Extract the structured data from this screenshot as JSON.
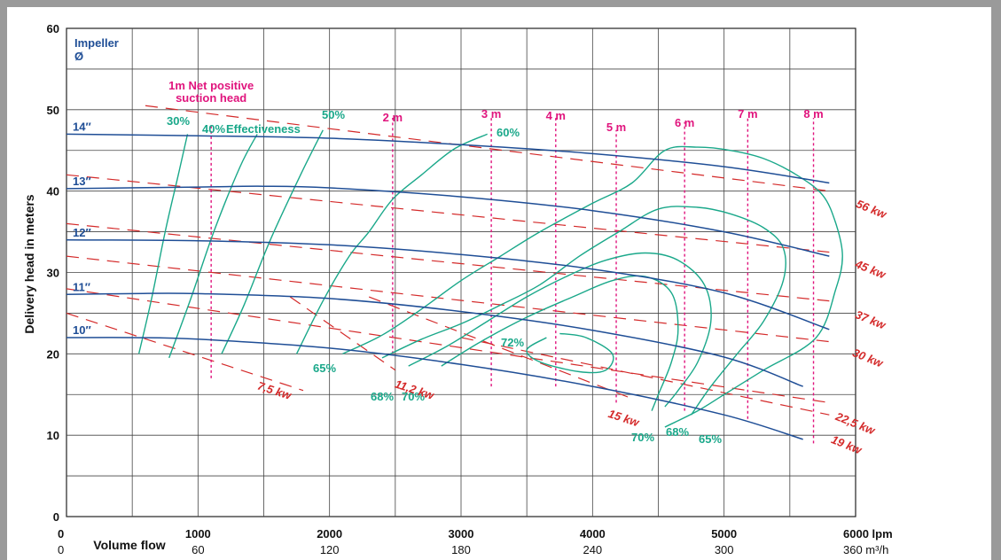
{
  "chart_data": {
    "type": "line",
    "x_unit": "lpm",
    "xlim": [
      0,
      6000
    ],
    "ylim": [
      0,
      60
    ],
    "ylabel": "Delivery head in meters",
    "xlabel": "Volume flow",
    "x_ticks": [
      "0",
      "1000",
      "2000",
      "3000",
      "4000",
      "5000",
      "6000 lpm"
    ],
    "x_ticks_secondary": [
      "0",
      "60",
      "120",
      "180",
      "240",
      "300",
      "360 m³/h"
    ],
    "y_ticks": [
      "0",
      "10",
      "20",
      "30",
      "40",
      "50",
      "60"
    ],
    "grid": true,
    "impeller_header": [
      "Impeller",
      "Ø"
    ],
    "impeller_curves": [
      {
        "name": "14″",
        "points": [
          [
            0,
            47
          ],
          [
            1000,
            46.8
          ],
          [
            2000,
            46.5
          ],
          [
            3000,
            45.7
          ],
          [
            4000,
            44.6
          ],
          [
            5000,
            43
          ],
          [
            5800,
            41
          ]
        ]
      },
      {
        "name": "13″",
        "points": [
          [
            0,
            40.3
          ],
          [
            1000,
            40.5
          ],
          [
            1500,
            40.6
          ],
          [
            2000,
            40.4
          ],
          [
            3000,
            39.3
          ],
          [
            4000,
            37.6
          ],
          [
            5000,
            35
          ],
          [
            5800,
            32
          ]
        ]
      },
      {
        "name": "12″",
        "points": [
          [
            0,
            34
          ],
          [
            1000,
            33.9
          ],
          [
            2000,
            33.4
          ],
          [
            3000,
            32.2
          ],
          [
            4000,
            30.4
          ],
          [
            5000,
            27.5
          ],
          [
            5800,
            23
          ]
        ]
      },
      {
        "name": "11″",
        "points": [
          [
            0,
            27.3
          ],
          [
            500,
            27.4
          ],
          [
            1000,
            27.4
          ],
          [
            2000,
            26.8
          ],
          [
            3000,
            25.2
          ],
          [
            4000,
            22.9
          ],
          [
            5000,
            19.6
          ],
          [
            5600,
            16
          ]
        ]
      },
      {
        "name": "10″",
        "points": [
          [
            0,
            22
          ],
          [
            500,
            22
          ],
          [
            1000,
            21.8
          ],
          [
            2000,
            20.7
          ],
          [
            3000,
            18.7
          ],
          [
            4000,
            16
          ],
          [
            5000,
            12.5
          ],
          [
            5600,
            9.5
          ]
        ]
      }
    ],
    "efficiency_curves": [
      {
        "name": "30%",
        "points": [
          [
            550,
            20
          ],
          [
            650,
            27
          ],
          [
            750,
            35
          ],
          [
            850,
            42
          ],
          [
            920,
            47
          ]
        ]
      },
      {
        "name": "40%",
        "points": [
          [
            780,
            19.5
          ],
          [
            950,
            27
          ],
          [
            1120,
            35
          ],
          [
            1320,
            43
          ],
          [
            1450,
            47
          ]
        ]
      },
      {
        "name": "Effectiveness",
        "points": [
          [
            1180,
            20
          ],
          [
            1350,
            26
          ],
          [
            1550,
            34
          ],
          [
            1780,
            42
          ],
          [
            1950,
            47.5
          ]
        ]
      },
      {
        "name": "50%",
        "points": [
          [
            1750,
            20
          ],
          [
            1950,
            26.5
          ],
          [
            2150,
            32
          ],
          [
            2300,
            35
          ],
          [
            2480,
            39
          ],
          [
            2700,
            42
          ],
          [
            2950,
            45.2
          ],
          [
            3200,
            47
          ]
        ]
      },
      {
        "name": "60%",
        "points": [
          [
            2100,
            20
          ],
          [
            2400,
            22.3
          ],
          [
            2700,
            25.5
          ],
          [
            3000,
            29
          ],
          [
            3300,
            32
          ],
          [
            3600,
            35
          ],
          [
            4000,
            38.5
          ],
          [
            4300,
            41
          ],
          [
            4550,
            45
          ],
          [
            4800,
            45.4
          ],
          [
            5050,
            45
          ],
          [
            5300,
            44
          ],
          [
            5550,
            42
          ],
          [
            5750,
            39.5
          ],
          [
            5850,
            36
          ],
          [
            5900,
            32
          ],
          [
            5850,
            28
          ],
          [
            5700,
            22
          ],
          [
            5300,
            18
          ],
          [
            5000,
            15
          ],
          [
            4800,
            13
          ],
          [
            4550,
            11
          ]
        ]
      },
      {
        "name": "65%",
        "points": [
          [
            2400,
            19.5
          ],
          [
            2700,
            21.8
          ],
          [
            3000,
            23.7
          ],
          [
            3300,
            26
          ],
          [
            3600,
            28.5
          ],
          [
            3900,
            32
          ],
          [
            4200,
            35
          ],
          [
            4500,
            37.8
          ],
          [
            4800,
            38
          ],
          [
            5050,
            37.2
          ],
          [
            5300,
            35.5
          ],
          [
            5450,
            33
          ],
          [
            5450,
            29
          ],
          [
            5300,
            24
          ],
          [
            5100,
            20
          ],
          [
            4900,
            16
          ],
          [
            4750,
            12.5
          ]
        ]
      },
      {
        "name": "68%",
        "points": [
          [
            2600,
            18.5
          ],
          [
            2900,
            21
          ],
          [
            3200,
            24
          ],
          [
            3500,
            27
          ],
          [
            3800,
            29.5
          ],
          [
            4100,
            31.5
          ],
          [
            4400,
            32.4
          ],
          [
            4650,
            31.5
          ],
          [
            4850,
            28.5
          ],
          [
            4900,
            24
          ],
          [
            4800,
            19
          ],
          [
            4650,
            15.5
          ],
          [
            4550,
            13.5
          ]
        ]
      },
      {
        "name": "70%",
        "points": [
          [
            2850,
            18.5
          ],
          [
            3150,
            21.5
          ],
          [
            3500,
            24.5
          ],
          [
            3850,
            27
          ],
          [
            4150,
            29
          ],
          [
            4400,
            29.5
          ],
          [
            4600,
            27.5
          ],
          [
            4650,
            23
          ],
          [
            4600,
            19
          ],
          [
            4500,
            15
          ],
          [
            4450,
            13
          ]
        ]
      },
      {
        "name": "72%",
        "points": [
          [
            3650,
            22
          ],
          [
            3500,
            20.5
          ],
          [
            3600,
            19
          ],
          [
            3900,
            17.8
          ],
          [
            4100,
            18
          ],
          [
            4150,
            20
          ],
          [
            3950,
            22
          ],
          [
            3750,
            22.5
          ]
        ]
      }
    ],
    "npsh_lines": [
      {
        "name": "1m Net positive suction head",
        "x": 1100,
        "y_range": [
          17,
          48
        ]
      },
      {
        "name": "2m",
        "x": 2480,
        "y_range": [
          20,
          49
        ]
      },
      {
        "name": "3m",
        "x": 3230,
        "y_range": [
          16,
          49
        ]
      },
      {
        "name": "4m",
        "x": 3720,
        "y_range": [
          16,
          49
        ]
      },
      {
        "name": "5m",
        "x": 4180,
        "y_range": [
          14,
          47.5
        ]
      },
      {
        "name": "6m",
        "x": 4700,
        "y_range": [
          13,
          48.5
        ]
      },
      {
        "name": "7m",
        "x": 5180,
        "y_range": [
          12,
          49
        ]
      },
      {
        "name": "8m",
        "x": 5680,
        "y_range": [
          9,
          49
        ]
      }
    ],
    "power_lines": [
      {
        "name": "56 kw",
        "points": [
          [
            600,
            50.5
          ],
          [
            5800,
            40
          ]
        ]
      },
      {
        "name": "45 kw",
        "points": [
          [
            0,
            42
          ],
          [
            5800,
            32.5
          ]
        ]
      },
      {
        "name": "37 kw",
        "points": [
          [
            0,
            36
          ],
          [
            5800,
            26.5
          ]
        ]
      },
      {
        "name": "30 kw",
        "points": [
          [
            0,
            32
          ],
          [
            5800,
            21.5
          ]
        ]
      },
      {
        "name": "22,5 kw",
        "points": [
          [
            0,
            28
          ],
          [
            5800,
            14
          ]
        ]
      },
      {
        "name": "19 kw",
        "points": [
          [
            3000,
            22
          ],
          [
            5800,
            12.5
          ]
        ]
      },
      {
        "name": "15 kw",
        "points": [
          [
            2300,
            27
          ],
          [
            4300,
            14.5
          ]
        ]
      },
      {
        "name": "11,2 kw",
        "points": [
          [
            1700,
            27
          ],
          [
            2500,
            18
          ]
        ]
      },
      {
        "name": "7,5 kw",
        "points": [
          [
            0,
            25
          ],
          [
            1800,
            15.5
          ]
        ]
      }
    ],
    "labels": {
      "impellers": [
        "14″",
        "13″",
        "12″",
        "11″",
        "10″"
      ],
      "npsh_1m_line1": "1m Net positive",
      "npsh_1m_line2": "suction head",
      "npsh": [
        "2 m",
        "3 m",
        "4 m",
        "5 m",
        "6 m",
        "7 m",
        "8 m"
      ],
      "eff_top": [
        "30%",
        "40%",
        "Effectiveness",
        "50%",
        "60%"
      ],
      "eff_bottom": [
        "65%",
        "68%",
        "70%",
        "72%",
        "70%",
        "68%",
        "65%"
      ],
      "power": [
        "56 kw",
        "45 kw",
        "37 kw",
        "30 kw",
        "22,5 kw",
        "19 kw",
        "15 kw",
        "11,2 kw",
        "7,5 kw"
      ]
    },
    "colors": {
      "impeller": "#1f4e96",
      "npsh": "#e0147d",
      "efficiency": "#1aa88a",
      "power": "#d42a2a",
      "grid": "#333333"
    }
  }
}
